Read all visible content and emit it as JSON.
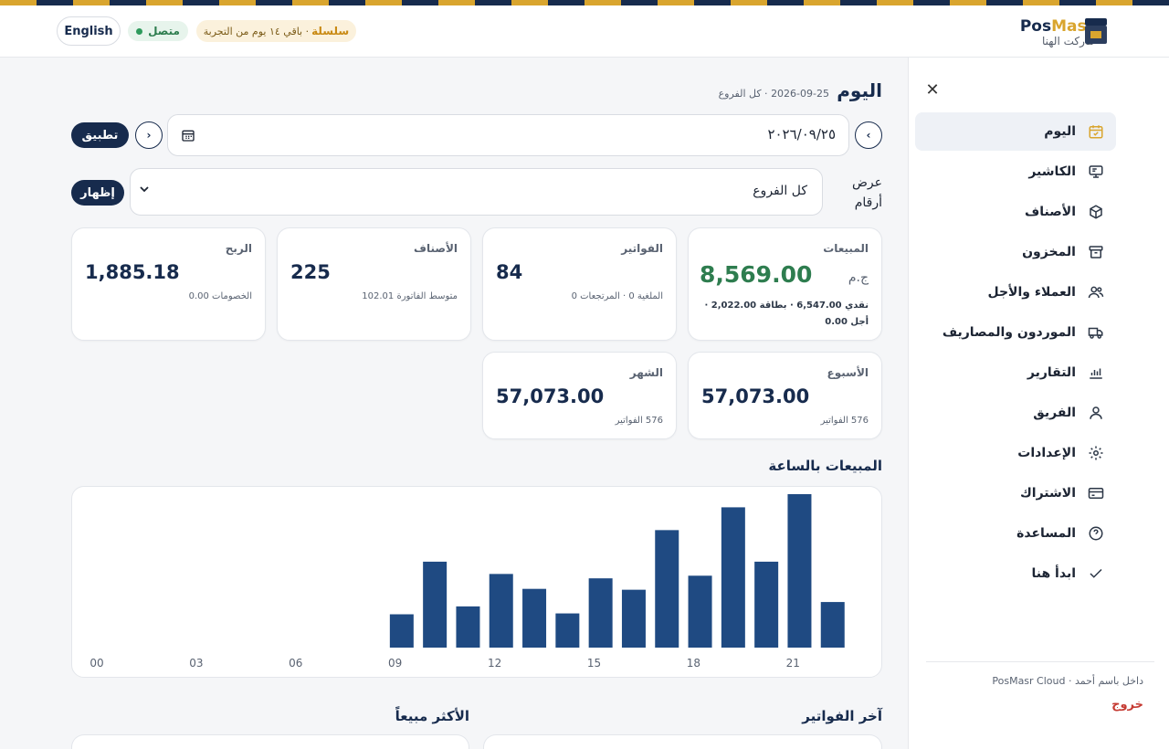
{
  "topbar": {
    "brand_name_prefix": "Pos",
    "brand_name_suffix": "Masr",
    "store_name": "ماركت الهنا",
    "lang_button": "English",
    "status": "متصل",
    "trial_plan": "سلسلة",
    "trial_text": "· باقي ١٤ يوم من التجربة"
  },
  "sidebar": {
    "items": [
      {
        "label": "اليوم",
        "icon": "calendar-check-icon",
        "active": true
      },
      {
        "label": "الكاشير",
        "icon": "monitor-icon"
      },
      {
        "label": "الأصناف",
        "icon": "box-icon"
      },
      {
        "label": "المخزون",
        "icon": "archive-icon"
      },
      {
        "label": "العملاء والأجل",
        "icon": "users-icon"
      },
      {
        "label": "الموردون والمصاريف",
        "icon": "truck-icon"
      },
      {
        "label": "التقارير",
        "icon": "bar-chart-icon"
      },
      {
        "label": "الفريق",
        "icon": "user-icon"
      },
      {
        "label": "الإعدادات",
        "icon": "gear-icon"
      },
      {
        "label": "الاشتراك",
        "icon": "credit-card-icon"
      },
      {
        "label": "المساعدة",
        "icon": "help-circle-icon"
      },
      {
        "label": "ابدأ هنا",
        "icon": "check-icon"
      }
    ],
    "user_line": "داخل باسم أحمد · PosMasr Cloud",
    "logout": "خروج"
  },
  "page": {
    "title": "اليوم",
    "subtitle": "2026-09-25 · كل الفروع",
    "date_value": "٢٠٢٦/٠٩/٢٥",
    "apply_button": "تطبيق",
    "show_label": "عرض أرقام",
    "branch_select": "كل الفروع",
    "show_button": "إظهار"
  },
  "cards": {
    "sales": {
      "label": "المبيعات",
      "currency": "ج.م",
      "value": "8,569.00",
      "sub": "نقدي 6,547.00 · بطاقة 2,022.00 · أجل 0.00"
    },
    "invoices": {
      "label": "الفواتير",
      "value": "84",
      "sub": "الملغية 0 · المرتجعات 0"
    },
    "items": {
      "label": "الأصناف",
      "value": "225",
      "sub": "متوسط الفاتورة 102.01"
    },
    "profit": {
      "label": "الربح",
      "value": "1,885.18",
      "sub": "الخصومات 0.00"
    },
    "week": {
      "label": "الأسبوع",
      "value": "57,073.00",
      "sub": "576 الفواتير"
    },
    "month": {
      "label": "الشهر",
      "value": "57,073.00",
      "sub": "576 الفواتير"
    }
  },
  "chart_title": "المبيعات بالساعة",
  "chart_data": {
    "type": "bar",
    "x": [
      0,
      1,
      2,
      3,
      4,
      5,
      6,
      7,
      8,
      9,
      10,
      11,
      12,
      13,
      14,
      15,
      16,
      17,
      18,
      19,
      20,
      21,
      22,
      23
    ],
    "values": [
      0,
      0,
      0,
      0,
      0,
      0,
      0,
      0,
      0,
      38,
      98,
      47,
      84,
      67,
      39,
      79,
      66,
      134,
      82,
      160,
      98,
      175,
      52,
      0
    ],
    "tick_labels": [
      "00",
      "03",
      "06",
      "09",
      "12",
      "15",
      "18",
      "21"
    ],
    "tick_hours": [
      0,
      3,
      6,
      9,
      12,
      15,
      18,
      21
    ],
    "bar_color": "#1f4a82"
  },
  "sections": {
    "recent_invoices": "آخر الفواتير",
    "best_sellers": "الأكثر مبيعاً"
  },
  "colors": {
    "navy": "#172b4d",
    "gold": "#d9a52e",
    "green": "#2e7d4f",
    "red": "#c53a32"
  }
}
